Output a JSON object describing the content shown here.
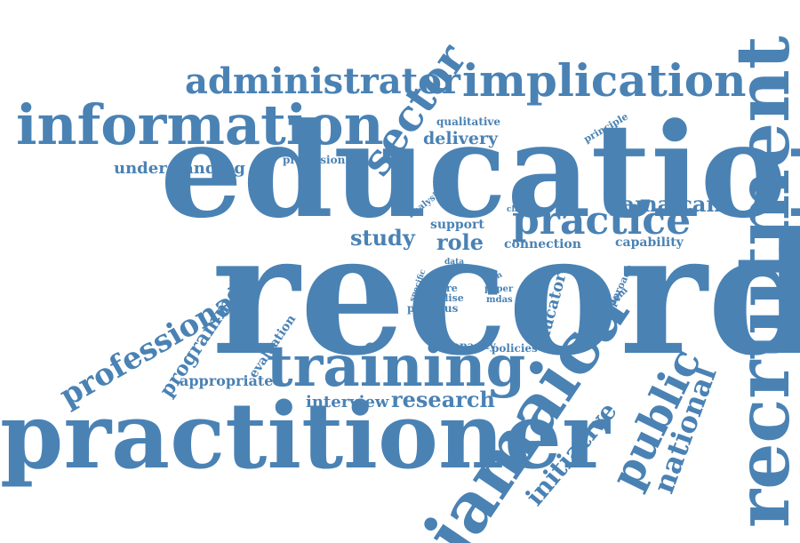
{
  "cloud": {
    "color": "#4a82b4",
    "background": "#ffffff",
    "words": {
      "record": "record",
      "education": "education",
      "practitioner": "practitioner",
      "recruitment": "recruitment",
      "jamaica": "jamaica",
      "information": "information",
      "training": "training",
      "implication": "implication",
      "administrator": "administrator",
      "sector": "sector",
      "practice": "practice",
      "public": "public",
      "professional": "professional",
      "national": "national",
      "initiative": "initiative",
      "research": "research",
      "interview": "interview",
      "programme": "programme",
      "jamaican": "jamaican",
      "delivery": "delivery",
      "understanding": "understanding",
      "study": "study",
      "role": "role",
      "support": "support",
      "connection": "connection",
      "capability": "capability",
      "appropriate": "appropriate",
      "evaluation": "evaluation",
      "educator": "educator",
      "qualitative": "qualitative",
      "profession": "profession",
      "principle": "principle",
      "analysis": "analysis",
      "change": "change",
      "data": "data",
      "plan": "plan",
      "paper": "paper",
      "mdas": "mdas",
      "more": "more",
      "utilise": "utilise",
      "previous": "previous",
      "specific": "specific",
      "capacity": "capacity",
      "policies": "policies",
      "problem": "problem",
      "approach": "approach"
    }
  }
}
